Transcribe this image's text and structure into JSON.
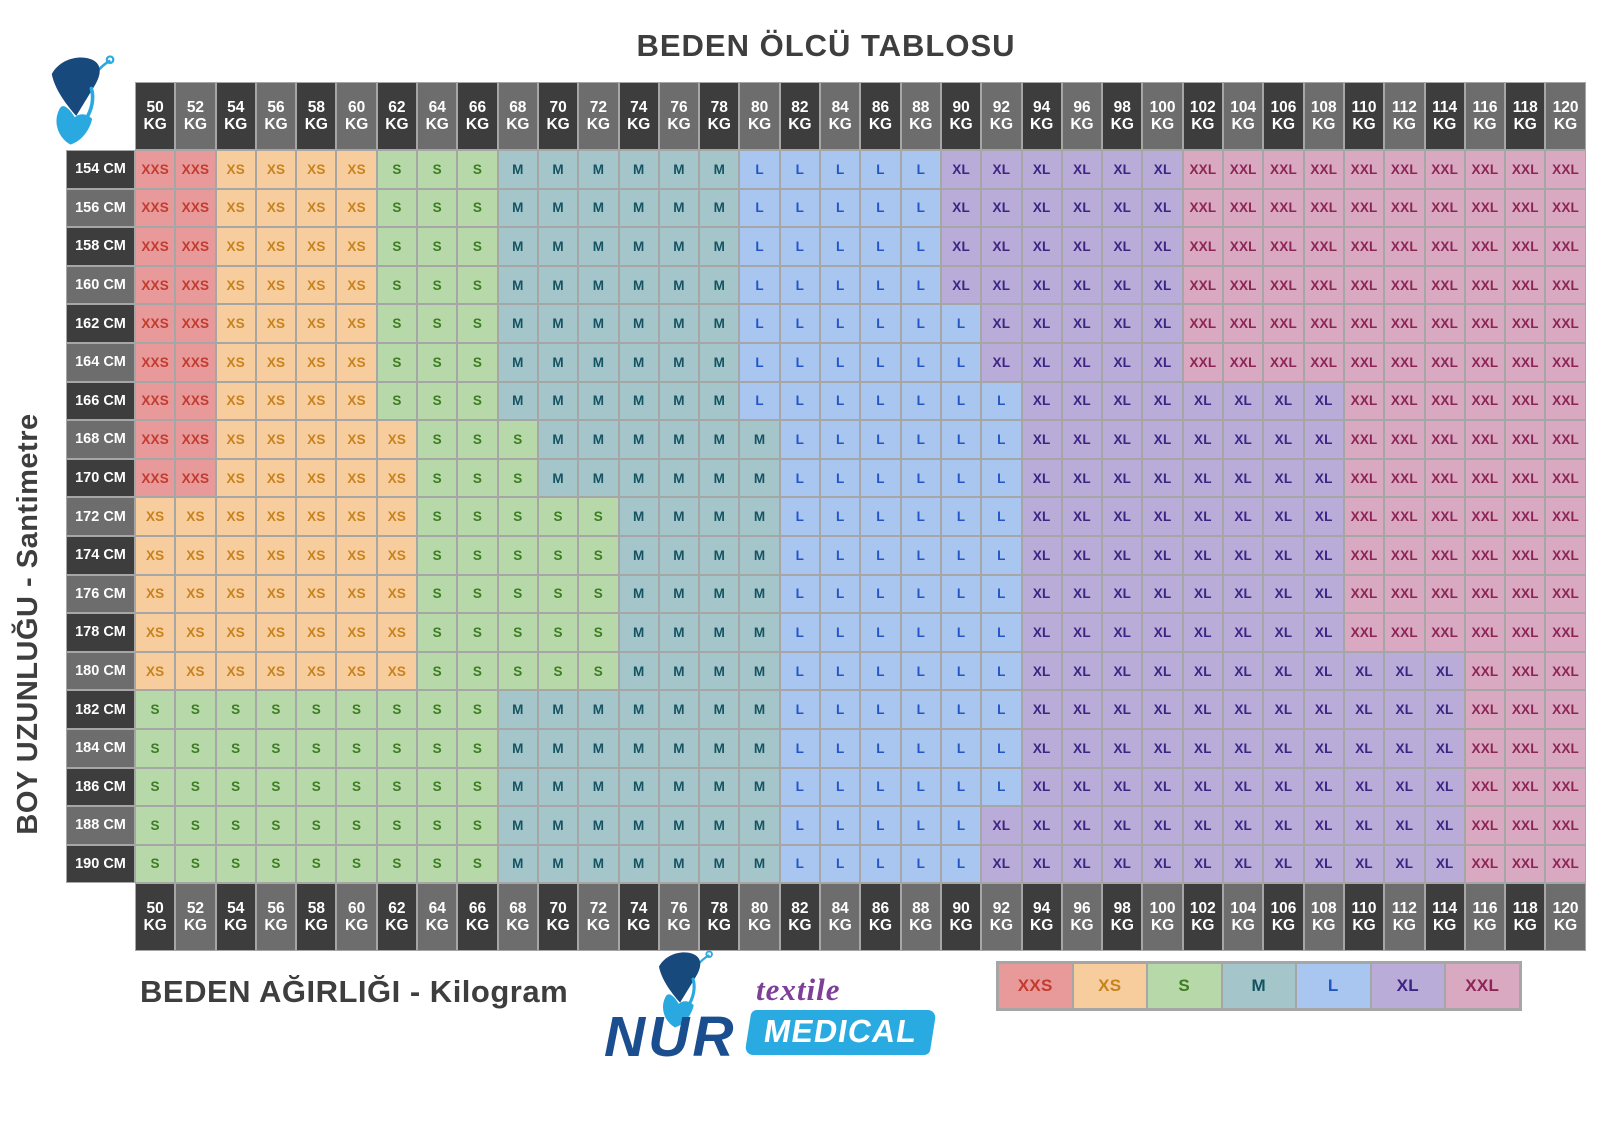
{
  "title": "BEDEN ÖLCÜ TABLOSU",
  "x_axis_label": "BEDEN AĞIRLIĞI - Kilogram",
  "y_axis_label": "BOY UZUNLUĞU - Santimetre",
  "logo": {
    "name": "NUR",
    "tagline_top": "textile",
    "tagline_bottom": "MEDICAL"
  },
  "legend": [
    "XXS",
    "XS",
    "S",
    "M",
    "L",
    "XL",
    "XXL"
  ],
  "colors": {
    "title_text": "#3e3e3e",
    "header_dark": "#3d3d3d",
    "header_light": "#6d6d6d",
    "header_text": "#ffffff",
    "grid_line": "#a6a6a6",
    "logo_navy": "#1b4e8e",
    "logo_purple": "#7d3f98",
    "logo_blue": "#29abe2",
    "butterfly_dark": "#17497c",
    "butterfly_light": "#2aa9e0",
    "sizes": {
      "XXS": {
        "bg": "#e89a9a",
        "text": "#c23b2e"
      },
      "XS": {
        "bg": "#f8cd9e",
        "text": "#c8821d"
      },
      "S": {
        "bg": "#b7d8a8",
        "text": "#3c7d22"
      },
      "M": {
        "bg": "#a4c6ca",
        "text": "#145361"
      },
      "L": {
        "bg": "#a8c6f0",
        "text": "#2356c5"
      },
      "XL": {
        "bg": "#b9acd8",
        "text": "#3d2383"
      },
      "XXL": {
        "bg": "#d9a9c1",
        "text": "#8c2456"
      }
    }
  },
  "chart_data": {
    "type": "table",
    "title": "BEDEN ÖLCÜ TABLOSU",
    "xlabel": "BEDEN AĞIRLIĞI - Kilogram",
    "ylabel": "BOY UZUNLUĞU - Santimetre",
    "weight_unit": "KG",
    "height_unit": "CM",
    "weights_kg": [
      "50",
      "52",
      "54",
      "56",
      "58",
      "60",
      "62",
      "64",
      "66",
      "68",
      "70",
      "72",
      "74",
      "76",
      "78",
      "80",
      "82",
      "84",
      "86",
      "88",
      "90",
      "92",
      "94",
      "96",
      "98",
      "100",
      "102",
      "104",
      "106",
      "108",
      "110",
      "112",
      "114",
      "116",
      "118",
      "120"
    ],
    "heights_cm": [
      "154",
      "156",
      "158",
      "160",
      "162",
      "164",
      "166",
      "168",
      "170",
      "172",
      "174",
      "176",
      "178",
      "180",
      "182",
      "184",
      "186",
      "188",
      "190"
    ],
    "matrix": [
      [
        "XXS",
        "XXS",
        "XS",
        "XS",
        "XS",
        "XS",
        "S",
        "S",
        "S",
        "M",
        "M",
        "M",
        "M",
        "M",
        "M",
        "L",
        "L",
        "L",
        "L",
        "L",
        "XL",
        "XL",
        "XL",
        "XL",
        "XL",
        "XL",
        "XXL",
        "XXL",
        "XXL",
        "XXL",
        "XXL",
        "XXL",
        "XXL",
        "XXL",
        "XXL",
        "XXL"
      ],
      [
        "XXS",
        "XXS",
        "XS",
        "XS",
        "XS",
        "XS",
        "S",
        "S",
        "S",
        "M",
        "M",
        "M",
        "M",
        "M",
        "M",
        "L",
        "L",
        "L",
        "L",
        "L",
        "XL",
        "XL",
        "XL",
        "XL",
        "XL",
        "XL",
        "XXL",
        "XXL",
        "XXL",
        "XXL",
        "XXL",
        "XXL",
        "XXL",
        "XXL",
        "XXL",
        "XXL"
      ],
      [
        "XXS",
        "XXS",
        "XS",
        "XS",
        "XS",
        "XS",
        "S",
        "S",
        "S",
        "M",
        "M",
        "M",
        "M",
        "M",
        "M",
        "L",
        "L",
        "L",
        "L",
        "L",
        "XL",
        "XL",
        "XL",
        "XL",
        "XL",
        "XL",
        "XXL",
        "XXL",
        "XXL",
        "XXL",
        "XXL",
        "XXL",
        "XXL",
        "XXL",
        "XXL",
        "XXL"
      ],
      [
        "XXS",
        "XXS",
        "XS",
        "XS",
        "XS",
        "XS",
        "S",
        "S",
        "S",
        "M",
        "M",
        "M",
        "M",
        "M",
        "M",
        "L",
        "L",
        "L",
        "L",
        "L",
        "XL",
        "XL",
        "XL",
        "XL",
        "XL",
        "XL",
        "XXL",
        "XXL",
        "XXL",
        "XXL",
        "XXL",
        "XXL",
        "XXL",
        "XXL",
        "XXL",
        "XXL"
      ],
      [
        "XXS",
        "XXS",
        "XS",
        "XS",
        "XS",
        "XS",
        "S",
        "S",
        "S",
        "M",
        "M",
        "M",
        "M",
        "M",
        "M",
        "L",
        "L",
        "L",
        "L",
        "L",
        "L",
        "XL",
        "XL",
        "XL",
        "XL",
        "XL",
        "XXL",
        "XXL",
        "XXL",
        "XXL",
        "XXL",
        "XXL",
        "XXL",
        "XXL",
        "XXL",
        "XXL"
      ],
      [
        "XXS",
        "XXS",
        "XS",
        "XS",
        "XS",
        "XS",
        "S",
        "S",
        "S",
        "M",
        "M",
        "M",
        "M",
        "M",
        "M",
        "L",
        "L",
        "L",
        "L",
        "L",
        "L",
        "XL",
        "XL",
        "XL",
        "XL",
        "XL",
        "XXL",
        "XXL",
        "XXL",
        "XXL",
        "XXL",
        "XXL",
        "XXL",
        "XXL",
        "XXL",
        "XXL"
      ],
      [
        "XXS",
        "XXS",
        "XS",
        "XS",
        "XS",
        "XS",
        "S",
        "S",
        "S",
        "M",
        "M",
        "M",
        "M",
        "M",
        "M",
        "L",
        "L",
        "L",
        "L",
        "L",
        "L",
        "L",
        "XL",
        "XL",
        "XL",
        "XL",
        "XL",
        "XL",
        "XL",
        "XL",
        "XXL",
        "XXL",
        "XXL",
        "XXL",
        "XXL",
        "XXL"
      ],
      [
        "XXS",
        "XXS",
        "XS",
        "XS",
        "XS",
        "XS",
        "XS",
        "S",
        "S",
        "S",
        "M",
        "M",
        "M",
        "M",
        "M",
        "M",
        "L",
        "L",
        "L",
        "L",
        "L",
        "L",
        "XL",
        "XL",
        "XL",
        "XL",
        "XL",
        "XL",
        "XL",
        "XL",
        "XXL",
        "XXL",
        "XXL",
        "XXL",
        "XXL",
        "XXL"
      ],
      [
        "XXS",
        "XXS",
        "XS",
        "XS",
        "XS",
        "XS",
        "XS",
        "S",
        "S",
        "S",
        "M",
        "M",
        "M",
        "M",
        "M",
        "M",
        "L",
        "L",
        "L",
        "L",
        "L",
        "L",
        "XL",
        "XL",
        "XL",
        "XL",
        "XL",
        "XL",
        "XL",
        "XL",
        "XXL",
        "XXL",
        "XXL",
        "XXL",
        "XXL",
        "XXL"
      ],
      [
        "XS",
        "XS",
        "XS",
        "XS",
        "XS",
        "XS",
        "XS",
        "S",
        "S",
        "S",
        "S",
        "S",
        "M",
        "M",
        "M",
        "M",
        "L",
        "L",
        "L",
        "L",
        "L",
        "L",
        "XL",
        "XL",
        "XL",
        "XL",
        "XL",
        "XL",
        "XL",
        "XL",
        "XXL",
        "XXL",
        "XXL",
        "XXL",
        "XXL",
        "XXL"
      ],
      [
        "XS",
        "XS",
        "XS",
        "XS",
        "XS",
        "XS",
        "XS",
        "S",
        "S",
        "S",
        "S",
        "S",
        "M",
        "M",
        "M",
        "M",
        "L",
        "L",
        "L",
        "L",
        "L",
        "L",
        "XL",
        "XL",
        "XL",
        "XL",
        "XL",
        "XL",
        "XL",
        "XL",
        "XXL",
        "XXL",
        "XXL",
        "XXL",
        "XXL",
        "XXL"
      ],
      [
        "XS",
        "XS",
        "XS",
        "XS",
        "XS",
        "XS",
        "XS",
        "S",
        "S",
        "S",
        "S",
        "S",
        "M",
        "M",
        "M",
        "M",
        "L",
        "L",
        "L",
        "L",
        "L",
        "L",
        "XL",
        "XL",
        "XL",
        "XL",
        "XL",
        "XL",
        "XL",
        "XL",
        "XXL",
        "XXL",
        "XXL",
        "XXL",
        "XXL",
        "XXL"
      ],
      [
        "XS",
        "XS",
        "XS",
        "XS",
        "XS",
        "XS",
        "XS",
        "S",
        "S",
        "S",
        "S",
        "S",
        "M",
        "M",
        "M",
        "M",
        "L",
        "L",
        "L",
        "L",
        "L",
        "L",
        "XL",
        "XL",
        "XL",
        "XL",
        "XL",
        "XL",
        "XL",
        "XL",
        "XXL",
        "XXL",
        "XXL",
        "XXL",
        "XXL",
        "XXL"
      ],
      [
        "XS",
        "XS",
        "XS",
        "XS",
        "XS",
        "XS",
        "XS",
        "S",
        "S",
        "S",
        "S",
        "S",
        "M",
        "M",
        "M",
        "M",
        "L",
        "L",
        "L",
        "L",
        "L",
        "L",
        "XL",
        "XL",
        "XL",
        "XL",
        "XL",
        "XL",
        "XL",
        "XL",
        "XL",
        "XL",
        "XL",
        "XXL",
        "XXL",
        "XXL"
      ],
      [
        "S",
        "S",
        "S",
        "S",
        "S",
        "S",
        "S",
        "S",
        "S",
        "M",
        "M",
        "M",
        "M",
        "M",
        "M",
        "M",
        "L",
        "L",
        "L",
        "L",
        "L",
        "L",
        "XL",
        "XL",
        "XL",
        "XL",
        "XL",
        "XL",
        "XL",
        "XL",
        "XL",
        "XL",
        "XL",
        "XXL",
        "XXL",
        "XXL"
      ],
      [
        "S",
        "S",
        "S",
        "S",
        "S",
        "S",
        "S",
        "S",
        "S",
        "M",
        "M",
        "M",
        "M",
        "M",
        "M",
        "M",
        "L",
        "L",
        "L",
        "L",
        "L",
        "L",
        "XL",
        "XL",
        "XL",
        "XL",
        "XL",
        "XL",
        "XL",
        "XL",
        "XL",
        "XL",
        "XL",
        "XXL",
        "XXL",
        "XXL"
      ],
      [
        "S",
        "S",
        "S",
        "S",
        "S",
        "S",
        "S",
        "S",
        "S",
        "M",
        "M",
        "M",
        "M",
        "M",
        "M",
        "M",
        "L",
        "L",
        "L",
        "L",
        "L",
        "L",
        "XL",
        "XL",
        "XL",
        "XL",
        "XL",
        "XL",
        "XL",
        "XL",
        "XL",
        "XL",
        "XL",
        "XXL",
        "XXL",
        "XXL"
      ],
      [
        "S",
        "S",
        "S",
        "S",
        "S",
        "S",
        "S",
        "S",
        "S",
        "M",
        "M",
        "M",
        "M",
        "M",
        "M",
        "M",
        "L",
        "L",
        "L",
        "L",
        "L",
        "XL",
        "XL",
        "XL",
        "XL",
        "XL",
        "XL",
        "XL",
        "XL",
        "XL",
        "XL",
        "XL",
        "XL",
        "XXL",
        "XXL",
        "XXL"
      ],
      [
        "S",
        "S",
        "S",
        "S",
        "S",
        "S",
        "S",
        "S",
        "S",
        "M",
        "M",
        "M",
        "M",
        "M",
        "M",
        "M",
        "L",
        "L",
        "L",
        "L",
        "L",
        "XL",
        "XL",
        "XL",
        "XL",
        "XL",
        "XL",
        "XL",
        "XL",
        "XL",
        "XL",
        "XL",
        "XL",
        "XXL",
        "XXL",
        "XXL"
      ]
    ]
  }
}
